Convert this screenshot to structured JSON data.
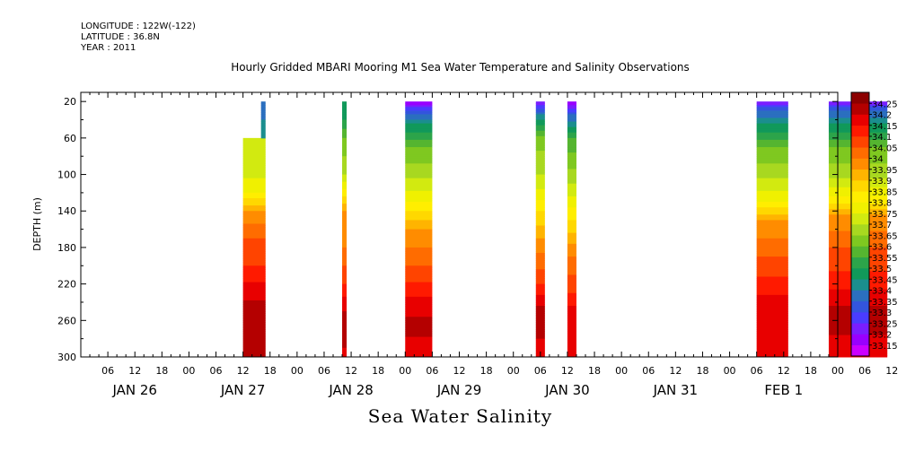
{
  "meta": {
    "longitude": "LONGITUDE : 122W(-122)",
    "latitude": "LATITUDE : 36.8N",
    "year": "YEAR : 2011"
  },
  "title": "Hourly Gridded MBARI Mooring M1 Sea Water Temperature and Salinity Observations",
  "bottom_label": "Sea Water Salinity",
  "chart_data": {
    "type": "heatmap",
    "title": "Hourly Gridded MBARI Mooring M1 Sea Water Temperature and Salinity Observations",
    "variable": "Sea Water Salinity",
    "ylabel": "DEPTH (m)",
    "ylim": [
      300,
      10
    ],
    "y_reversed": true,
    "y_ticks": [
      20,
      60,
      100,
      140,
      180,
      220,
      260,
      300
    ],
    "x_range_hours": [
      -12,
      156
    ],
    "x_hour_ticks": [
      "06",
      "12",
      "18",
      "00",
      "06",
      "12",
      "18",
      "00",
      "06",
      "12",
      "18",
      "00",
      "06",
      "12",
      "18",
      "00",
      "06",
      "12",
      "18",
      "00",
      "06",
      "12",
      "18",
      "00",
      "06",
      "12",
      "18",
      "00",
      "06",
      "12",
      "18",
      "00"
    ],
    "x_day_labels": [
      "JAN 26",
      "JAN 27",
      "JAN 28",
      "JAN 29",
      "JAN 30",
      "JAN 31",
      "FEB  1"
    ],
    "colorbar": {
      "levels": [
        33.15,
        33.2,
        33.25,
        33.3,
        33.35,
        33.4,
        33.45,
        33.5,
        33.55,
        33.6,
        33.65,
        33.7,
        33.75,
        33.8,
        33.85,
        33.9,
        33.95,
        34,
        34.05,
        34.1,
        34.15,
        34.2,
        34.25
      ],
      "labels": [
        "33.15",
        "33.2",
        "33.25",
        "33.3",
        "33.35",
        "33.4",
        "33.45",
        "33.5",
        "33.55",
        "33.6",
        "33.65",
        "33.7",
        "33.75",
        "33.8",
        "33.85",
        "33.9",
        "33.95",
        "34",
        "34.05",
        "34.1",
        "34.15",
        "34.2",
        "34.25"
      ],
      "colors": [
        "#cc00ff",
        "#9900ff",
        "#7a1eff",
        "#4a3cff",
        "#3355dd",
        "#2b6fbf",
        "#1b8e8e",
        "#11995a",
        "#2ca44a",
        "#55b530",
        "#7fc820",
        "#a8d820",
        "#d2ea10",
        "#f0f000",
        "#ffee00",
        "#ffd800",
        "#ffb400",
        "#ff8c00",
        "#ff6c00",
        "#ff4400",
        "#ff1a00",
        "#e80000",
        "#b40000",
        "#8c0000"
      ]
    },
    "segments": [
      {
        "start_hour": 24,
        "end_hour": 29,
        "top_depth": 60,
        "notch": {
          "start_hour": 28,
          "end_hour": 29,
          "top_depth": 20
        },
        "profile": [
          [
            60,
            33.72
          ],
          [
            80,
            33.7
          ],
          [
            100,
            33.74
          ],
          [
            120,
            33.8
          ],
          [
            140,
            33.95
          ],
          [
            170,
            34.05
          ],
          [
            200,
            34.1
          ],
          [
            230,
            34.18
          ],
          [
            260,
            34.25
          ],
          [
            290,
            34.22
          ],
          [
            300,
            34.2
          ]
        ]
      },
      {
        "start_hour": 46,
        "end_hour": 47,
        "top_depth": 20,
        "profile": [
          [
            20,
            33.45
          ],
          [
            40,
            33.5
          ],
          [
            60,
            33.6
          ],
          [
            100,
            33.7
          ],
          [
            140,
            33.95
          ],
          [
            180,
            34.0
          ],
          [
            220,
            34.1
          ],
          [
            250,
            34.2
          ],
          [
            280,
            34.22
          ],
          [
            300,
            34.18
          ]
        ]
      },
      {
        "start_hour": 60,
        "end_hour": 66,
        "top_depth": 20,
        "profile": [
          [
            20,
            33.15
          ],
          [
            30,
            33.3
          ],
          [
            45,
            33.45
          ],
          [
            70,
            33.6
          ],
          [
            100,
            33.68
          ],
          [
            130,
            33.8
          ],
          [
            160,
            33.95
          ],
          [
            200,
            34.05
          ],
          [
            235,
            34.15
          ],
          [
            265,
            34.22
          ],
          [
            290,
            34.18
          ],
          [
            300,
            34.15
          ]
        ]
      },
      {
        "start_hour": 89,
        "end_hour": 91,
        "top_depth": 20,
        "profile": [
          [
            20,
            33.2
          ],
          [
            35,
            33.4
          ],
          [
            60,
            33.62
          ],
          [
            110,
            33.72
          ],
          [
            140,
            33.85
          ],
          [
            180,
            33.98
          ],
          [
            220,
            34.1
          ],
          [
            250,
            34.22
          ],
          [
            280,
            34.2
          ],
          [
            300,
            34.18
          ]
        ]
      },
      {
        "start_hour": 96,
        "end_hour": 98,
        "top_depth": 20,
        "profile": [
          [
            20,
            33.15
          ],
          [
            35,
            33.35
          ],
          [
            60,
            33.55
          ],
          [
            110,
            33.7
          ],
          [
            150,
            33.85
          ],
          [
            190,
            34.0
          ],
          [
            230,
            34.1
          ],
          [
            260,
            34.2
          ],
          [
            300,
            34.15
          ]
        ]
      },
      {
        "start_hour": 138,
        "end_hour": 145,
        "top_depth": 20,
        "profile": [
          [
            20,
            33.2
          ],
          [
            30,
            33.35
          ],
          [
            45,
            33.45
          ],
          [
            70,
            33.6
          ],
          [
            100,
            33.68
          ],
          [
            130,
            33.8
          ],
          [
            150,
            33.95
          ],
          [
            190,
            34.05
          ],
          [
            220,
            34.12
          ],
          [
            250,
            34.2
          ],
          [
            280,
            34.17
          ],
          [
            300,
            34.15
          ]
        ]
      },
      {
        "start_hour": 154,
        "end_hour": 167,
        "top_depth": 20,
        "profile": [
          [
            20,
            33.2
          ],
          [
            30,
            33.35
          ],
          [
            45,
            33.45
          ],
          [
            70,
            33.6
          ],
          [
            100,
            33.68
          ],
          [
            125,
            33.8
          ],
          [
            145,
            33.95
          ],
          [
            180,
            34.05
          ],
          [
            215,
            34.12
          ],
          [
            245,
            34.2
          ],
          [
            275,
            34.2
          ],
          [
            300,
            34.15
          ]
        ]
      }
    ]
  }
}
